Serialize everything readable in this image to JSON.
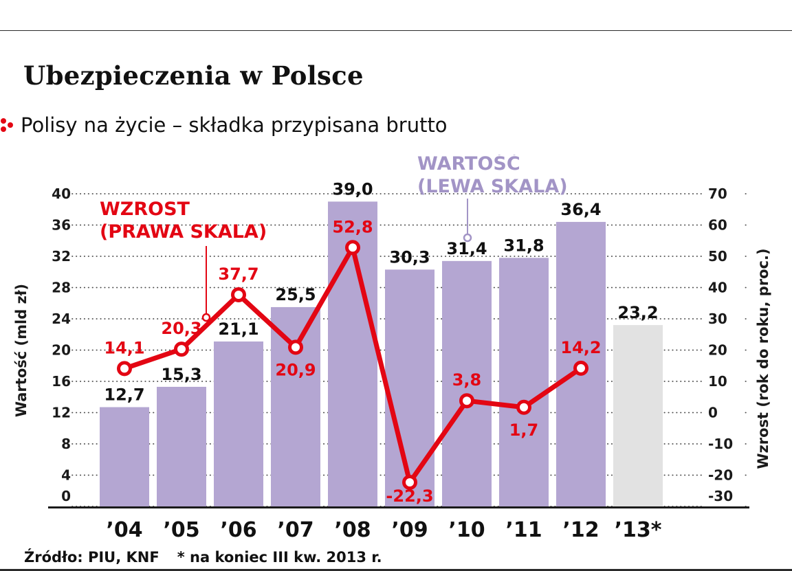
{
  "header": {
    "title": "Ubezpieczenia w Polsce",
    "subtitle": "Polisy na życie – składka przypisana brutto"
  },
  "annotations": {
    "line_callout": {
      "line1": "WZROST",
      "line2": "(PRAWA SKALA)"
    },
    "bar_callout": {
      "line1": "WARTOŚĆ",
      "line2": "(LEWA SKALA)"
    }
  },
  "colors": {
    "bar": "#b4a6d2",
    "bar_forecast": "#e2e2e2",
    "line": "#e30613",
    "bar_callout": "#a294c6",
    "text": "#1a1a1a"
  },
  "chart_data": {
    "type": "bar+line",
    "categories": [
      "’04",
      "’05",
      "’06",
      "’07",
      "’08",
      "’09",
      "’10",
      "’11",
      "’12",
      "’13*"
    ],
    "series": [
      {
        "name": "Wartość (lewa skala)",
        "type": "bar",
        "axis": "left",
        "values": [
          12.7,
          15.3,
          21.1,
          25.5,
          39.0,
          30.3,
          31.4,
          31.8,
          36.4,
          23.2
        ],
        "labels": [
          "12,7",
          "15,3",
          "21,1",
          "25,5",
          "39,0",
          "30,3",
          "31,4",
          "31,8",
          "36,4",
          "23,2"
        ]
      },
      {
        "name": "Wzrost (prawa skala)",
        "type": "line",
        "axis": "right",
        "values": [
          14.1,
          20.3,
          37.7,
          20.9,
          52.8,
          -22.3,
          3.8,
          1.7,
          14.2
        ],
        "labels": [
          "14,1",
          "20,3",
          "37,7",
          "20,9",
          "52,8",
          "-22,3",
          "3,8",
          "1,7",
          "14,2"
        ],
        "label_pos": [
          "above",
          "above",
          "above",
          "below",
          "above",
          "below-near",
          "above",
          "below",
          "above"
        ]
      }
    ],
    "left_axis": {
      "label": "Wartość (mld zł)",
      "range": [
        0,
        40
      ],
      "ticks": [
        0,
        4,
        8,
        12,
        16,
        20,
        24,
        28,
        32,
        36,
        40
      ]
    },
    "right_axis": {
      "label": "Wzrost (rok do roku, proc.)",
      "range": [
        -30,
        70
      ],
      "ticks": [
        -30,
        -20,
        -10,
        0,
        10,
        20,
        30,
        40,
        50,
        60,
        70
      ]
    },
    "grid": true,
    "legend_position": "none"
  },
  "footer": {
    "source": "Źródło: PIU, KNF",
    "note": "* na koniec III kw. 2013 r."
  }
}
